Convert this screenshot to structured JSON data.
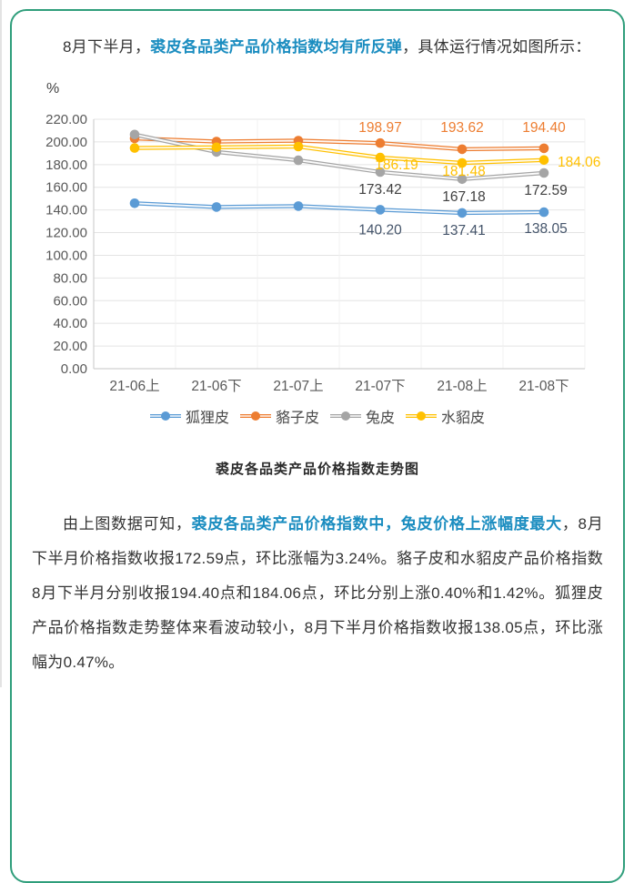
{
  "intro": {
    "before": "8月下半月，",
    "highlight": "裘皮各品类产品价格指数均有所反弹",
    "after": "，具体运行情况如图所示："
  },
  "analysis": {
    "before": "由上图数据可知，",
    "highlight": "裘皮各品类产品价格指数中，兔皮价格上涨幅度最大",
    "after": "，8月下半月价格指数收报172.59点，环比涨幅为3.24%。貉子皮和水貂皮产品价格指数8月下半月分别收报194.40点和184.06点，环比分别上涨0.40%和1.42%。狐狸皮产品价格指数走势整体来看波动较小，8月下半月价格指数收报138.05点，环比涨幅为0.47%。"
  },
  "colors": {
    "card_border": "#2f9e7b",
    "highlight_text": "#1b8dc0",
    "axis_text": "#595959",
    "gridline": "#e4e4e4",
    "vertical_gridline": "#f0f0f0",
    "axis_line": "#d0d0d0"
  },
  "chart_data": {
    "type": "line",
    "title": "裘皮各品类产品价格指数走势图",
    "y_unit": "%",
    "categories": [
      "21-06上",
      "21-06下",
      "21-07上",
      "21-07下",
      "21-08上",
      "21-08下"
    ],
    "y_axis": {
      "min": 0,
      "max": 220,
      "step": 20
    },
    "grid": true,
    "legend_position": "bottom",
    "series": [
      {
        "id": "fox-fur",
        "name": "狐狸皮",
        "color": "#5b9bd5",
        "label_color": "#44546a",
        "values": [
          145.9,
          142.6,
          143.4,
          140.2,
          137.41,
          138.05
        ],
        "labeled_points": [
          3,
          4,
          5
        ],
        "labels": [
          "140.20",
          "137.41",
          "138.05"
        ],
        "label_offsets": [
          [
            0,
            27
          ],
          [
            2,
            24
          ],
          [
            2,
            23
          ]
        ],
        "label_anchors": [
          "middle",
          "middle",
          "middle"
        ]
      },
      {
        "id": "raccoon-fur",
        "name": "貉子皮",
        "color": "#ed7d31",
        "label_color": "#ed7d31",
        "values": [
          203.1,
          200.3,
          201.1,
          198.97,
          193.62,
          194.4
        ],
        "labeled_points": [
          3,
          4,
          5
        ],
        "labels": [
          "198.97",
          "193.62",
          "194.40"
        ],
        "label_offsets": [
          [
            0,
            -12
          ],
          [
            0,
            -19
          ],
          [
            0,
            -18
          ]
        ],
        "label_anchors": [
          "middle",
          "middle",
          "middle"
        ]
      },
      {
        "id": "rabbit-fur",
        "name": "兔皮",
        "color": "#a5a5a5",
        "label_color": "#404040",
        "values": [
          206.5,
          191.2,
          183.8,
          173.42,
          167.18,
          172.59
        ],
        "labeled_points": [
          3,
          4,
          5
        ],
        "labels": [
          "173.42",
          "167.18",
          "172.59"
        ],
        "label_offsets": [
          [
            0,
            24
          ],
          [
            2,
            24
          ],
          [
            2,
            24
          ]
        ],
        "label_anchors": [
          "middle",
          "middle",
          "middle"
        ]
      },
      {
        "id": "mink-fur",
        "name": "水貂皮",
        "color": "#ffc000",
        "label_color": "#ffc000",
        "values": [
          194.6,
          195.3,
          195.9,
          186.19,
          181.48,
          184.06
        ],
        "labeled_points": [
          3,
          4,
          5
        ],
        "labels": [
          "186.19",
          "181.48",
          "184.06"
        ],
        "label_offsets": [
          [
            18,
            13
          ],
          [
            2,
            14
          ],
          [
            15,
            7
          ]
        ],
        "label_anchors": [
          "middle",
          "middle",
          "start"
        ]
      }
    ]
  }
}
